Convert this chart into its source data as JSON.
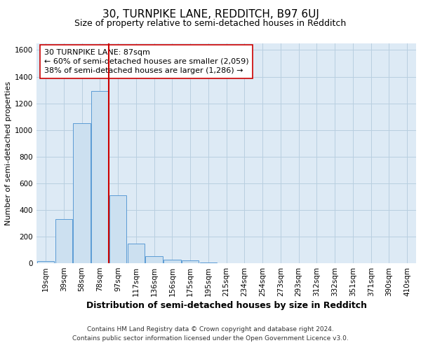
{
  "title": "30, TURNPIKE LANE, REDDITCH, B97 6UJ",
  "subtitle": "Size of property relative to semi-detached houses in Redditch",
  "xlabel": "Distribution of semi-detached houses by size in Redditch",
  "ylabel": "Number of semi-detached properties",
  "footer_line1": "Contains HM Land Registry data © Crown copyright and database right 2024.",
  "footer_line2": "Contains public sector information licensed under the Open Government Licence v3.0.",
  "annotation_line1": "30 TURNPIKE LANE: 87sqm",
  "annotation_line2": "← 60% of semi-detached houses are smaller (2,059)",
  "annotation_line3": "38% of semi-detached houses are larger (1,286) →",
  "bar_color": "#cce0f0",
  "bar_edge_color": "#5b9bd5",
  "grid_color": "#b8cfe0",
  "bg_color": "#ddeaf5",
  "annotation_box_color": "#ffffff",
  "red_line_color": "#cc0000",
  "categories": [
    "19sqm",
    "39sqm",
    "58sqm",
    "78sqm",
    "97sqm",
    "117sqm",
    "136sqm",
    "156sqm",
    "175sqm",
    "195sqm",
    "215sqm",
    "234sqm",
    "254sqm",
    "273sqm",
    "293sqm",
    "312sqm",
    "332sqm",
    "351sqm",
    "371sqm",
    "390sqm",
    "410sqm"
  ],
  "values": [
    15,
    330,
    1050,
    1295,
    510,
    150,
    55,
    25,
    20,
    5,
    3,
    1,
    0,
    0,
    0,
    0,
    0,
    0,
    0,
    0,
    0
  ],
  "ylim": [
    0,
    1650
  ],
  "yticks": [
    0,
    200,
    400,
    600,
    800,
    1000,
    1200,
    1400,
    1600
  ],
  "property_bin_index": 3,
  "title_fontsize": 11,
  "subtitle_fontsize": 9,
  "ylabel_fontsize": 8,
  "xlabel_fontsize": 9,
  "tick_fontsize": 7.5,
  "footer_fontsize": 6.5,
  "annotation_fontsize": 8
}
